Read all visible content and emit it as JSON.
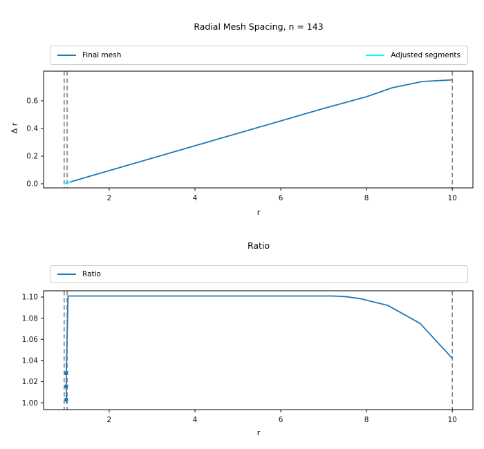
{
  "chart_data": [
    {
      "type": "line",
      "title": "Radial Mesh Spacing, n = 143",
      "xlabel": "r",
      "ylabel": "Δ r",
      "xlim": [
        0.47,
        10.48
      ],
      "ylim": [
        -0.03,
        0.815
      ],
      "xticks": [
        2,
        4,
        6,
        8,
        10
      ],
      "xtick_labels": [
        "2",
        "4",
        "6",
        "8",
        "10"
      ],
      "yticks": [
        0.0,
        0.2,
        0.4,
        0.6
      ],
      "ytick_labels": [
        "0.0",
        "0.2",
        "0.4",
        "0.6"
      ],
      "grid": false,
      "legend_position": "upper full-width bar above axes",
      "vlines": {
        "x": [
          0.95,
          1.02,
          10.0
        ],
        "color": "#808080",
        "style": "dashed"
      },
      "series": [
        {
          "name": "Final mesh",
          "color": "#1f77b4",
          "x": [
            1.0,
            2,
            3,
            4,
            5,
            6,
            7,
            8,
            8.6,
            9.3,
            10
          ],
          "y": [
            0.005,
            0.095,
            0.185,
            0.275,
            0.365,
            0.455,
            0.545,
            0.63,
            0.695,
            0.74,
            0.752
          ]
        },
        {
          "name": "Adjusted segments",
          "color": "#00ffff",
          "x": [
            0.93,
            1.12
          ],
          "y": [
            0.004,
            0.013
          ]
        }
      ]
    },
    {
      "type": "line",
      "title": "Ratio",
      "xlabel": "r",
      "ylabel": "",
      "xlim": [
        0.47,
        10.48
      ],
      "ylim": [
        0.9935,
        1.1059
      ],
      "xticks": [
        2,
        4,
        6,
        8,
        10
      ],
      "xtick_labels": [
        "2",
        "4",
        "6",
        "8",
        "10"
      ],
      "yticks": [
        1.0,
        1.02,
        1.04,
        1.06,
        1.08,
        1.1
      ],
      "ytick_labels": [
        "1.00",
        "1.02",
        "1.04",
        "1.06",
        "1.08",
        "1.10"
      ],
      "grid": false,
      "legend_position": "upper full-width bar above axes",
      "vlines": {
        "x": [
          0.95,
          1.02,
          10.0
        ],
        "color": "#808080",
        "style": "dashed"
      },
      "series": [
        {
          "name": "Ratio",
          "color": "#1f77b4",
          "x": [
            1.0,
            1.0,
            1.04,
            7.2,
            7.5,
            7.85,
            8.5,
            9.25,
            10.0
          ],
          "y": [
            1.0,
            1.028,
            1.101,
            1.101,
            1.1005,
            1.0985,
            1.092,
            1.075,
            1.042
          ],
          "markers": [
            [
              1.0,
              1.003
            ],
            [
              1.0,
              1.0155
            ],
            [
              1.0,
              1.028
            ]
          ]
        }
      ]
    }
  ]
}
